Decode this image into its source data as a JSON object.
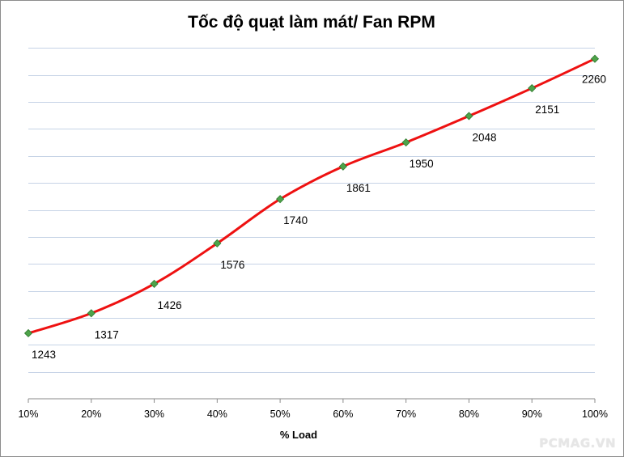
{
  "chart_data": {
    "type": "line",
    "title": "Tốc độ quạt làm mát/ Fan RPM",
    "xlabel": "% Load",
    "ylabel": "",
    "categories": [
      "10%",
      "20%",
      "30%",
      "40%",
      "50%",
      "60%",
      "70%",
      "80%",
      "90%",
      "100%"
    ],
    "series": [
      {
        "name": "Fan RPM",
        "values": [
          1243,
          1317,
          1426,
          1576,
          1740,
          1861,
          1950,
          2048,
          2151,
          2260
        ],
        "line_color": "#ee1111",
        "marker_color": "#4ea34a"
      }
    ],
    "ylim": [
      1000,
      2400
    ],
    "y_grid_step": 100,
    "y_tick_labels_visible": false,
    "grid": true,
    "legend": "none",
    "data_labels": true,
    "grid_color": "#c6d3e6"
  },
  "watermark": "PCMAG.VN"
}
